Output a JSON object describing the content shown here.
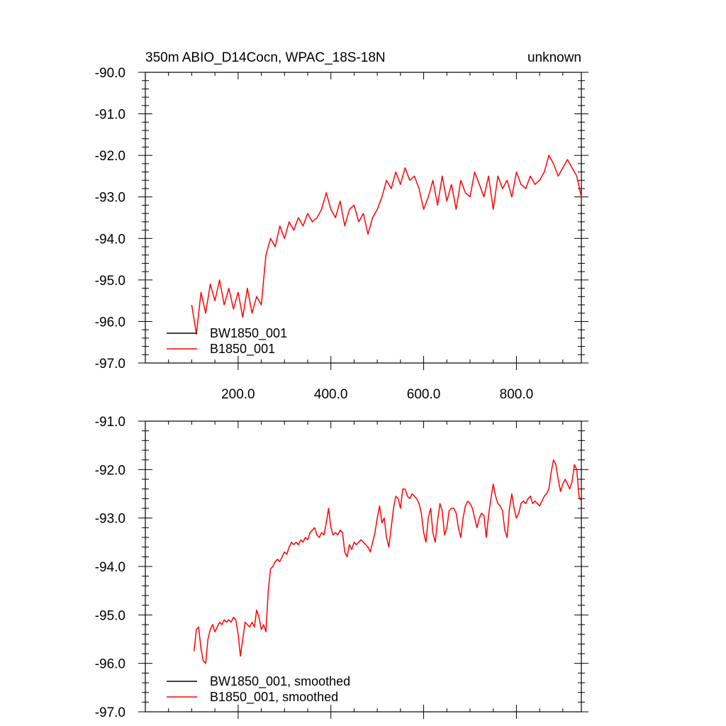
{
  "chart_data": [
    {
      "type": "line",
      "title": "350m ABIO_D14Cocn, WPAC_18S-18N",
      "title_right": "unknown",
      "xlim": [
        0,
        940
      ],
      "ylim": [
        -97.0,
        -90.0
      ],
      "xticks": [
        200,
        400,
        600,
        800
      ],
      "xtick_labels": [
        "200.0",
        "400.0",
        "600.0",
        "800.0"
      ],
      "yticks": [
        -90,
        -91,
        -92,
        -93,
        -94,
        -95,
        -96,
        -97
      ],
      "ytick_labels": [
        "-90.0",
        "-91.0",
        "-92.0",
        "-93.0",
        "-94.0",
        "-95.0",
        "-96.0",
        "-97.0"
      ],
      "legend": [
        {
          "name": "BW1850_001",
          "color": "#000000"
        },
        {
          "name": "B1850_001",
          "color": "#ff0000"
        }
      ],
      "series": [
        {
          "name": "B1850_001",
          "color": "#ff0000",
          "x": [
            100,
            110,
            120,
            130,
            140,
            150,
            160,
            170,
            180,
            190,
            200,
            210,
            220,
            230,
            240,
            250,
            255,
            260,
            270,
            280,
            290,
            300,
            310,
            320,
            330,
            340,
            350,
            360,
            370,
            380,
            390,
            400,
            410,
            420,
            430,
            440,
            450,
            460,
            470,
            480,
            490,
            500,
            510,
            520,
            530,
            540,
            550,
            560,
            570,
            580,
            590,
            600,
            610,
            620,
            630,
            640,
            650,
            660,
            670,
            680,
            690,
            700,
            710,
            720,
            730,
            740,
            750,
            760,
            770,
            780,
            790,
            800,
            810,
            820,
            830,
            840,
            850,
            860,
            870,
            880,
            890,
            900,
            910,
            920,
            930,
            940
          ],
          "y": [
            -95.6,
            -96.3,
            -95.3,
            -95.8,
            -95.1,
            -95.5,
            -95.0,
            -95.6,
            -95.2,
            -95.7,
            -95.3,
            -95.9,
            -95.2,
            -95.8,
            -95.4,
            -95.6,
            -95.0,
            -94.4,
            -94.0,
            -94.2,
            -93.7,
            -94.0,
            -93.6,
            -93.8,
            -93.5,
            -93.7,
            -93.4,
            -93.6,
            -93.5,
            -93.3,
            -92.9,
            -93.3,
            -93.5,
            -93.1,
            -93.7,
            -93.3,
            -93.2,
            -93.6,
            -93.4,
            -93.9,
            -93.5,
            -93.3,
            -93.0,
            -92.6,
            -92.8,
            -92.4,
            -92.7,
            -92.3,
            -92.6,
            -92.5,
            -92.8,
            -93.3,
            -93.0,
            -92.6,
            -93.2,
            -92.5,
            -93.1,
            -92.7,
            -93.3,
            -92.6,
            -92.9,
            -93.0,
            -92.4,
            -92.7,
            -93.0,
            -92.5,
            -93.3,
            -92.5,
            -92.8,
            -92.6,
            -93.0,
            -92.4,
            -92.7,
            -92.8,
            -92.5,
            -92.7,
            -92.6,
            -92.4,
            -92.0,
            -92.2,
            -92.5,
            -92.3,
            -92.1,
            -92.3,
            -92.5,
            -93.0
          ]
        }
      ]
    },
    {
      "type": "line",
      "xlim": [
        0,
        940
      ],
      "ylim": [
        -97.0,
        -91.0
      ],
      "xticks": [
        200,
        400,
        600,
        800
      ],
      "yticks": [
        -91,
        -92,
        -93,
        -94,
        -95,
        -96,
        -97
      ],
      "ytick_labels": [
        "-91.0",
        "-92.0",
        "-93.0",
        "-94.0",
        "-95.0",
        "-96.0",
        "-97.0"
      ],
      "legend": [
        {
          "name": "BW1850_001, smoothed",
          "color": "#000000"
        },
        {
          "name": "B1850_001, smoothed",
          "color": "#ff0000"
        }
      ],
      "series": [
        {
          "name": "B1850_001, smoothed",
          "color": "#ff0000",
          "x": [
            105,
            110,
            115,
            120,
            125,
            130,
            135,
            140,
            145,
            150,
            155,
            160,
            165,
            170,
            175,
            180,
            185,
            190,
            195,
            200,
            205,
            210,
            215,
            220,
            225,
            230,
            235,
            240,
            245,
            250,
            255,
            260,
            265,
            270,
            275,
            280,
            285,
            290,
            295,
            300,
            305,
            310,
            315,
            320,
            325,
            330,
            335,
            340,
            345,
            350,
            355,
            360,
            365,
            370,
            375,
            380,
            385,
            390,
            395,
            400,
            405,
            410,
            415,
            420,
            425,
            430,
            435,
            440,
            445,
            450,
            455,
            460,
            465,
            470,
            475,
            480,
            485,
            490,
            495,
            500,
            505,
            510,
            515,
            520,
            525,
            530,
            535,
            540,
            545,
            550,
            555,
            560,
            565,
            570,
            575,
            580,
            585,
            590,
            595,
            600,
            605,
            610,
            615,
            620,
            625,
            630,
            635,
            640,
            645,
            650,
            655,
            660,
            665,
            670,
            675,
            680,
            685,
            690,
            695,
            700,
            705,
            710,
            715,
            720,
            725,
            730,
            735,
            740,
            745,
            750,
            755,
            760,
            765,
            770,
            775,
            780,
            785,
            790,
            795,
            800,
            805,
            810,
            815,
            820,
            825,
            830,
            835,
            840,
            845,
            850,
            855,
            860,
            865,
            870,
            875,
            880,
            885,
            890,
            895,
            900,
            905,
            910,
            915,
            920,
            925,
            930,
            935,
            940
          ],
          "y": [
            -95.75,
            -95.3,
            -95.25,
            -95.7,
            -95.95,
            -96.0,
            -95.5,
            -95.3,
            -95.2,
            -95.35,
            -95.25,
            -95.15,
            -95.2,
            -95.1,
            -95.15,
            -95.1,
            -95.15,
            -95.05,
            -95.1,
            -95.4,
            -95.85,
            -95.5,
            -95.15,
            -95.2,
            -95.25,
            -95.15,
            -95.25,
            -94.9,
            -95.05,
            -95.3,
            -95.2,
            -95.35,
            -94.5,
            -94.05,
            -94.0,
            -93.9,
            -93.85,
            -93.9,
            -93.8,
            -93.7,
            -93.75,
            -93.6,
            -93.5,
            -93.55,
            -93.5,
            -93.55,
            -93.45,
            -93.5,
            -93.4,
            -93.45,
            -93.3,
            -93.25,
            -93.2,
            -93.35,
            -93.4,
            -93.3,
            -93.35,
            -93.1,
            -92.8,
            -93.2,
            -93.35,
            -93.3,
            -93.35,
            -93.25,
            -93.3,
            -93.7,
            -93.8,
            -93.55,
            -93.65,
            -93.5,
            -93.55,
            -93.5,
            -93.45,
            -93.5,
            -93.55,
            -93.6,
            -93.7,
            -93.5,
            -93.3,
            -93.0,
            -92.75,
            -93.1,
            -93.0,
            -93.4,
            -93.6,
            -93.2,
            -92.8,
            -92.55,
            -92.6,
            -92.8,
            -92.4,
            -92.4,
            -92.55,
            -92.6,
            -92.5,
            -92.55,
            -92.6,
            -92.7,
            -92.9,
            -93.3,
            -93.5,
            -93.0,
            -92.8,
            -93.3,
            -93.5,
            -93.05,
            -92.7,
            -92.85,
            -93.35,
            -93.2,
            -92.85,
            -92.8,
            -92.8,
            -92.9,
            -93.2,
            -93.4,
            -93.0,
            -92.75,
            -92.65,
            -92.7,
            -92.8,
            -93.0,
            -93.2,
            -93.0,
            -92.9,
            -92.95,
            -93.4,
            -92.95,
            -92.6,
            -92.3,
            -92.55,
            -92.7,
            -92.75,
            -92.85,
            -93.25,
            -93.4,
            -92.8,
            -92.5,
            -92.8,
            -93.0,
            -92.9,
            -92.7,
            -92.65,
            -92.7,
            -92.6,
            -92.55,
            -92.7,
            -92.65,
            -92.7,
            -92.75,
            -92.65,
            -92.55,
            -92.5,
            -92.4,
            -92.05,
            -91.8,
            -91.9,
            -92.2,
            -92.45,
            -92.3,
            -92.2,
            -92.3,
            -92.4,
            -92.25,
            -91.9,
            -92.0,
            -92.55,
            -92.65
          ]
        }
      ]
    }
  ]
}
